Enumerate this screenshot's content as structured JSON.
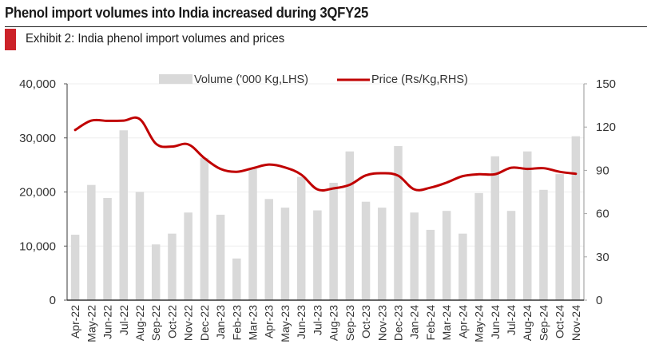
{
  "header": {
    "headline": "Phenol import volumes into India increased during 3QFY25",
    "exhibit_title": "Exhibit 2: India phenol import volumes and prices",
    "accent_color": "#cc2229"
  },
  "chart_data": {
    "type": "bar+line",
    "title": "Exhibit 2: India phenol import volumes and prices",
    "categories": [
      "Apr-22",
      "May-22",
      "Jun-22",
      "Jul-22",
      "Aug-22",
      "Sep-22",
      "Oct-22",
      "Nov-22",
      "Dec-22",
      "Jan-23",
      "Feb-23",
      "Mar-23",
      "Apr-23",
      "May-23",
      "Jun-23",
      "Jul-23",
      "Aug-23",
      "Sep-23",
      "Oct-23",
      "Nov-23",
      "Dec-23",
      "Jan-24",
      "Feb-24",
      "Mar-24",
      "Apr-24",
      "May-24",
      "Jun-24",
      "Jul-24",
      "Aug-24",
      "Sep-24",
      "Oct-24",
      "Nov-24"
    ],
    "series": [
      {
        "name": "Volume ('000 Kg,LHS)",
        "type": "bar",
        "axis": "left",
        "color": "#d9d9d9",
        "values": [
          12100,
          21300,
          18900,
          31400,
          20000,
          10300,
          12300,
          16200,
          26300,
          15800,
          7700,
          24300,
          18700,
          17100,
          22800,
          16600,
          21700,
          27500,
          18200,
          17100,
          28500,
          16200,
          13000,
          16500,
          12300,
          19800,
          26600,
          16500,
          27500,
          20400,
          23300,
          30300
        ]
      },
      {
        "name": "Price (Rs/Kg,RHS)",
        "type": "line",
        "axis": "right",
        "color": "#c00000",
        "values": [
          118,
          124.5,
          124.3,
          124.5,
          125.5,
          108.5,
          106.5,
          108,
          98.5,
          91,
          89,
          91.5,
          94,
          92,
          87,
          76.8,
          77.5,
          80,
          86.5,
          88,
          86.3,
          76.8,
          78,
          81.5,
          86,
          87.3,
          87.3,
          91.8,
          91,
          91.5,
          89,
          87.6
        ]
      }
    ],
    "y_left": {
      "label": "",
      "ylim": [
        0,
        40000
      ],
      "ticks": [
        0,
        10000,
        20000,
        30000,
        40000
      ],
      "tick_labels": [
        "0",
        "10,000",
        "20,000",
        "30,000",
        "40,000"
      ]
    },
    "y_right": {
      "label": "",
      "ylim": [
        0,
        150
      ],
      "ticks": [
        0,
        30,
        60,
        90,
        120,
        150
      ],
      "tick_labels": [
        "0",
        "30",
        "60",
        "90",
        "120",
        "150"
      ]
    },
    "xlabel": "",
    "grid": true,
    "legend": {
      "placement": "top-center",
      "entries": [
        "Volume ('000 Kg,LHS)",
        "Price (Rs/Kg,RHS)"
      ]
    }
  }
}
